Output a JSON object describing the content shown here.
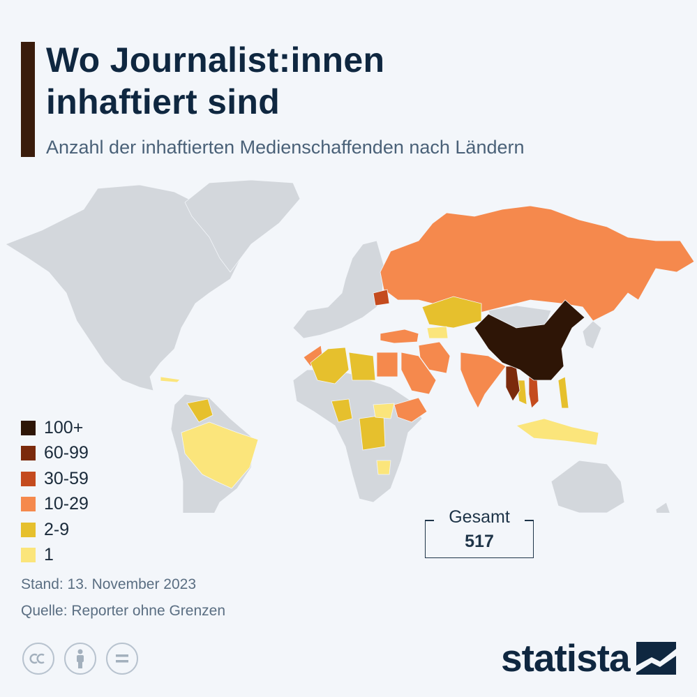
{
  "header": {
    "title_line1": "Wo Journalist:innen",
    "title_line2": "inhaftiert sind",
    "subtitle": "Anzahl der inhaftierten Medienschaffenden nach Ländern"
  },
  "legend": [
    {
      "label": "100+",
      "color": "#2e1506"
    },
    {
      "label": "60-99",
      "color": "#7b2a0c"
    },
    {
      "label": "30-59",
      "color": "#c44b1e"
    },
    {
      "label": "10-29",
      "color": "#f5894d"
    },
    {
      "label": "2-9",
      "color": "#e6c02d"
    },
    {
      "label": "1",
      "color": "#fbe57b"
    }
  ],
  "total": {
    "label": "Gesamt",
    "value": "517"
  },
  "footer": {
    "date": "Stand: 13. November 2023",
    "source": "Quelle: Reporter ohne Grenzen"
  },
  "license_icons": [
    "cc-icon",
    "attribution-icon",
    "no-derivatives-icon"
  ],
  "brand": {
    "name": "statista"
  },
  "map_data": {
    "type": "choropleth",
    "no_data_color": "#d3d7dc",
    "categories": {
      "100+": [
        "China"
      ],
      "60-99": [
        "Myanmar"
      ],
      "30-59": [
        "Belarus",
        "Vietnam"
      ],
      "10-29": [
        "Russland",
        "Iran",
        "Saudi-Arabien",
        "Türkei",
        "Indien",
        "Ägypten",
        "Eritrea"
      ],
      "2-9": [
        "Algerien",
        "Libyen",
        "Kasachstan",
        "Kamerun",
        "DR Kongo",
        "Venezuela",
        "Syrien"
      ],
      "1": [
        "Brasilien",
        "Indonesien",
        "Philippinen",
        "Sudan",
        "Simbabwe",
        "Kuba"
      ]
    }
  }
}
